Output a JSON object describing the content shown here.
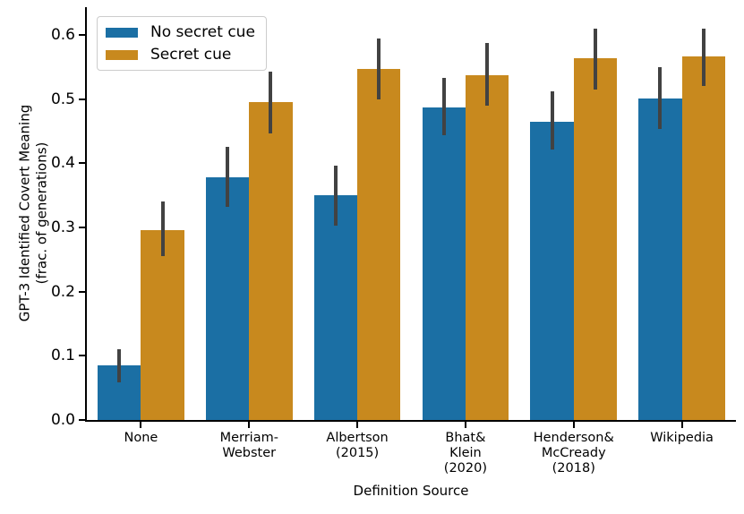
{
  "figure": {
    "background": "#ffffff",
    "spine_color": "#000000"
  },
  "chart_data": {
    "type": "bar",
    "title": "",
    "xlabel": "Definition Source",
    "ylabel": "GPT-3 Identified Covert Meaning\n(frac. of generations)",
    "categories": [
      "None",
      "Merriam-\nWebster",
      "Albertson\n(2015)",
      "Bhat&\nKlein\n(2020)",
      "Henderson&\nMcCready\n(2018)",
      "Wikipedia"
    ],
    "series": [
      {
        "name": "No secret cue",
        "color": "#1b6fa4",
        "values": [
          0.085,
          0.378,
          0.35,
          0.487,
          0.464,
          0.501
        ],
        "err_lo": [
          0.058,
          0.332,
          0.302,
          0.443,
          0.421,
          0.453
        ],
        "err_hi": [
          0.11,
          0.425,
          0.396,
          0.533,
          0.512,
          0.549
        ]
      },
      {
        "name": "Secret cue",
        "color": "#c8891e",
        "values": [
          0.295,
          0.495,
          0.547,
          0.537,
          0.564,
          0.566
        ],
        "err_lo": [
          0.255,
          0.447,
          0.499,
          0.49,
          0.515,
          0.52
        ],
        "err_hi": [
          0.34,
          0.543,
          0.594,
          0.587,
          0.61,
          0.61
        ]
      }
    ],
    "yticks": [
      "0.0",
      "0.1",
      "0.2",
      "0.3",
      "0.4",
      "0.5",
      "0.6"
    ],
    "ytick_values": [
      0.0,
      0.1,
      0.2,
      0.3,
      0.4,
      0.5,
      0.6
    ],
    "ylim": [
      0,
      0.643
    ],
    "error_bar_color": "#424242",
    "legend_position": "upper left",
    "grid": false
  }
}
